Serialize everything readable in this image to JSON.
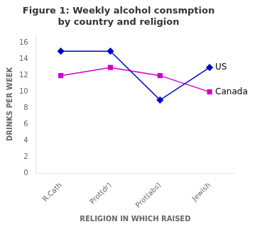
{
  "chart_data": {
    "type": "line",
    "title": "Figure 1: Weekly alcohol consmption\nby country and religion",
    "x_label": "RELIGION IN WHICH RAISED",
    "y_label": "DRINKS PER WEEK",
    "categories": [
      "R.Cath",
      "Prot(dr)",
      "Prot(abs)",
      "Jewish"
    ],
    "series": [
      {
        "name": "US",
        "color": "#0000CC",
        "marker": "diamond",
        "values": [
          15.0,
          15.0,
          9.0,
          13.0
        ]
      },
      {
        "name": "Canada",
        "color": "#CC00CC",
        "marker": "square",
        "values": [
          12.0,
          13.0,
          12.0,
          10.0
        ]
      }
    ],
    "annotations": [
      "US",
      "Canada"
    ],
    "ylim": [
      0,
      17
    ],
    "yticks": [
      0,
      2,
      4,
      6,
      8,
      10,
      12,
      14,
      16
    ],
    "grid": false
  }
}
